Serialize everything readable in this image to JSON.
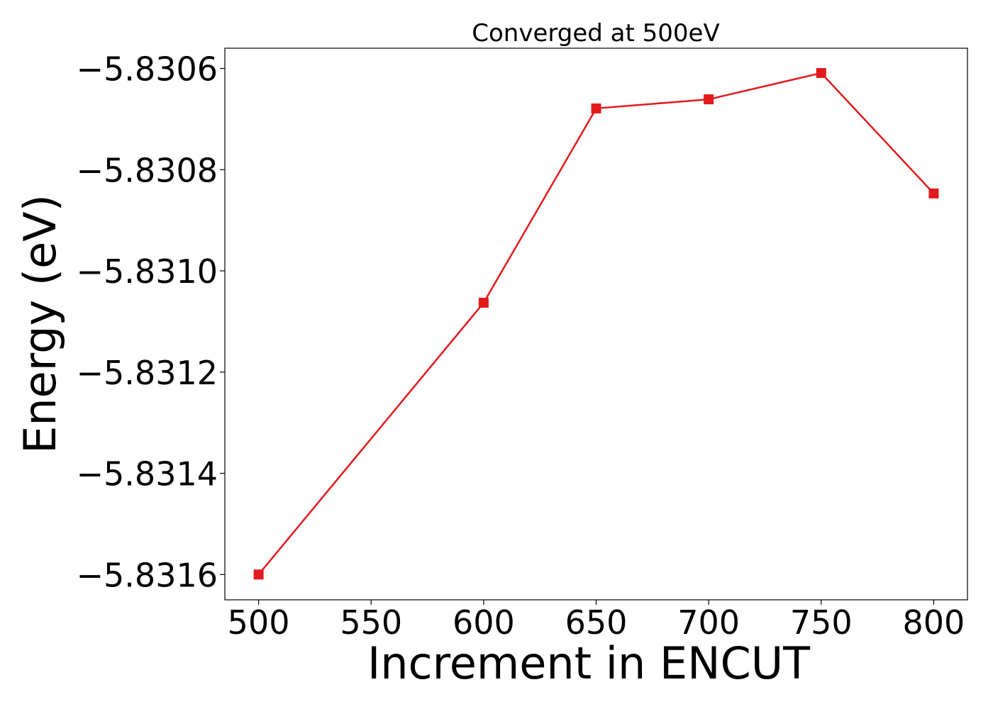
{
  "chart_data": {
    "type": "line",
    "title": "Converged at 500eV",
    "xlabel": "Increment in ENCUT",
    "ylabel": "Energy (eV)",
    "xlim": [
      485,
      815
    ],
    "ylim": [
      -5.83165,
      -5.83056
    ],
    "x_ticks": [
      500,
      550,
      600,
      650,
      700,
      750,
      800
    ],
    "x_tick_labels": [
      "500",
      "550",
      "600",
      "650",
      "700",
      "750",
      "800"
    ],
    "y_ticks": [
      -5.8306,
      -5.8308,
      -5.831,
      -5.8312,
      -5.8314,
      -5.8316
    ],
    "y_tick_labels": [
      "−5.8306",
      "−5.8308",
      "−5.8310",
      "−5.8312",
      "−5.8314",
      "−5.8316"
    ],
    "grid": false,
    "series": [
      {
        "color": "#e31a1c",
        "marker": "square",
        "x": [
          500,
          600,
          650,
          700,
          750,
          800
        ],
        "y": [
          -5.8316,
          -5.831063,
          -5.830679,
          -5.830661,
          -5.830609,
          -5.830847
        ]
      }
    ]
  }
}
